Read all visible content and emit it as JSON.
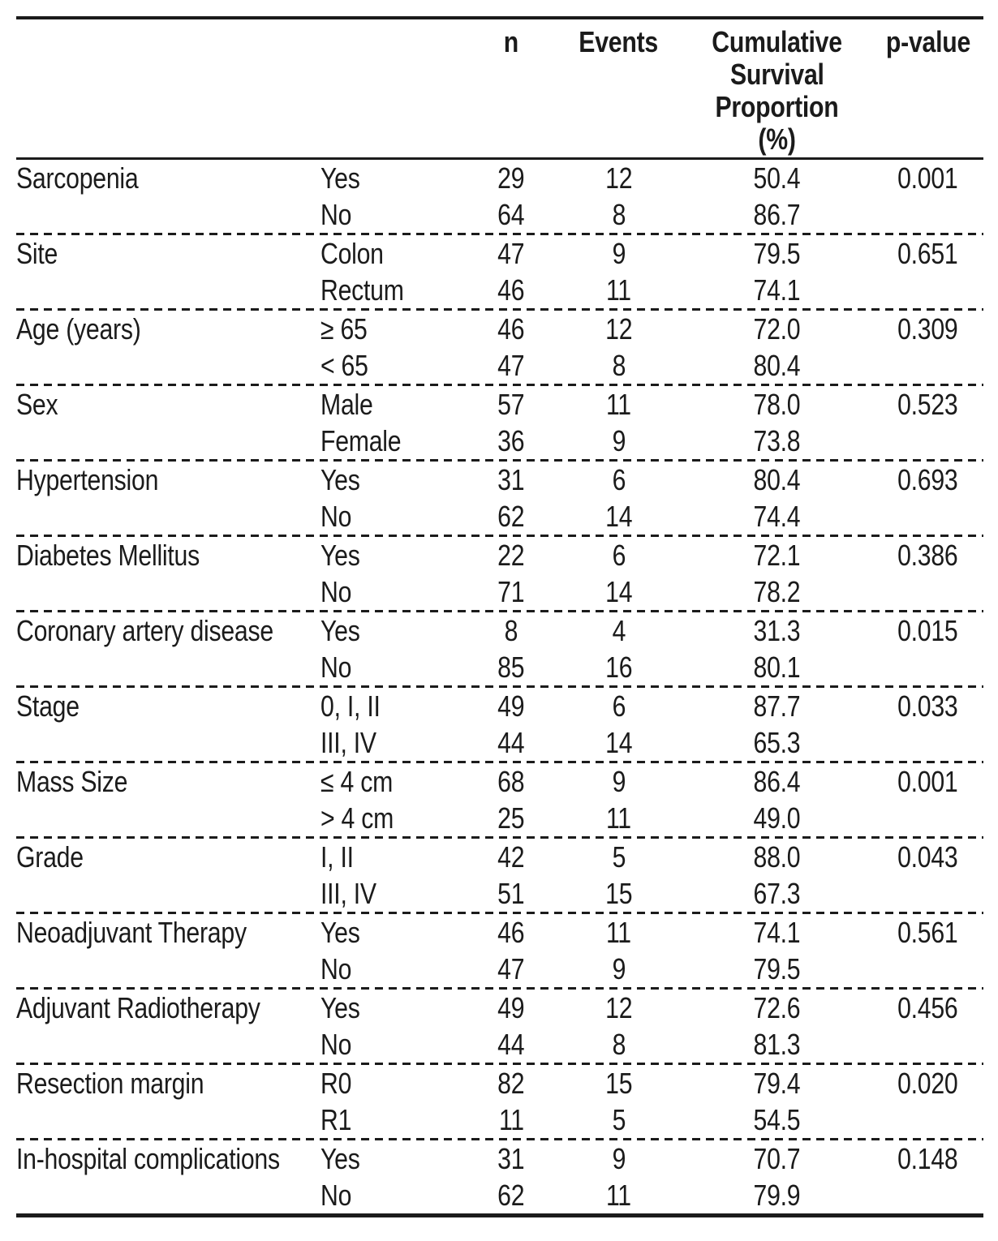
{
  "table": {
    "columns": {
      "n": "n",
      "events": "Events",
      "cumulative_lines": [
        "Cumulative",
        "Survival",
        "Proportion",
        "(%)"
      ],
      "p_value": "p-value"
    },
    "groups": [
      {
        "variable": "Sarcopenia",
        "p_value": "0.001",
        "rows": [
          {
            "category": "Yes",
            "n": "29",
            "events": "12",
            "survival": "50.4"
          },
          {
            "category": "No",
            "n": "64",
            "events": "8",
            "survival": "86.7"
          }
        ]
      },
      {
        "variable": "Site",
        "p_value": "0.651",
        "rows": [
          {
            "category": "Colon",
            "n": "47",
            "events": "9",
            "survival": "79.5"
          },
          {
            "category": "Rectum",
            "n": "46",
            "events": "11",
            "survival": "74.1"
          }
        ]
      },
      {
        "variable": "Age (years)",
        "p_value": "0.309",
        "rows": [
          {
            "category": "≥ 65",
            "n": "46",
            "events": "12",
            "survival": "72.0"
          },
          {
            "category": "< 65",
            "n": "47",
            "events": "8",
            "survival": "80.4"
          }
        ]
      },
      {
        "variable": "Sex",
        "p_value": "0.523",
        "rows": [
          {
            "category": "Male",
            "n": "57",
            "events": "11",
            "survival": "78.0"
          },
          {
            "category": "Female",
            "n": "36",
            "events": "9",
            "survival": "73.8"
          }
        ]
      },
      {
        "variable": "Hypertension",
        "p_value": "0.693",
        "rows": [
          {
            "category": "Yes",
            "n": "31",
            "events": "6",
            "survival": "80.4"
          },
          {
            "category": "No",
            "n": "62",
            "events": "14",
            "survival": "74.4"
          }
        ]
      },
      {
        "variable": "Diabetes Mellitus",
        "p_value": "0.386",
        "rows": [
          {
            "category": "Yes",
            "n": "22",
            "events": "6",
            "survival": "72.1"
          },
          {
            "category": "No",
            "n": "71",
            "events": "14",
            "survival": "78.2"
          }
        ]
      },
      {
        "variable": "Coronary artery disease",
        "p_value": "0.015",
        "rows": [
          {
            "category": "Yes",
            "n": "8",
            "events": "4",
            "survival": "31.3"
          },
          {
            "category": "No",
            "n": "85",
            "events": "16",
            "survival": "80.1"
          }
        ]
      },
      {
        "variable": "Stage",
        "p_value": "0.033",
        "rows": [
          {
            "category": "0, I, II",
            "n": "49",
            "events": "6",
            "survival": "87.7"
          },
          {
            "category": "III, IV",
            "n": "44",
            "events": "14",
            "survival": "65.3"
          }
        ]
      },
      {
        "variable": "Mass Size",
        "p_value": "0.001",
        "rows": [
          {
            "category": "≤ 4 cm",
            "n": "68",
            "events": "9",
            "survival": "86.4"
          },
          {
            "category": "> 4 cm",
            "n": "25",
            "events": "11",
            "survival": "49.0"
          }
        ]
      },
      {
        "variable": "Grade",
        "p_value": "0.043",
        "rows": [
          {
            "category": "I, II",
            "n": "42",
            "events": "5",
            "survival": "88.0"
          },
          {
            "category": "III, IV",
            "n": "51",
            "events": "15",
            "survival": "67.3"
          }
        ]
      },
      {
        "variable": "Neoadjuvant Therapy",
        "p_value": "0.561",
        "rows": [
          {
            "category": "Yes",
            "n": "46",
            "events": "11",
            "survival": "74.1"
          },
          {
            "category": "No",
            "n": "47",
            "events": "9",
            "survival": "79.5"
          }
        ]
      },
      {
        "variable": "Adjuvant Radiotherapy",
        "p_value": "0.456",
        "rows": [
          {
            "category": "Yes",
            "n": "49",
            "events": "12",
            "survival": "72.6"
          },
          {
            "category": "No",
            "n": "44",
            "events": "8",
            "survival": "81.3"
          }
        ]
      },
      {
        "variable": "Resection margin",
        "p_value": "0.020",
        "rows": [
          {
            "category": "R0",
            "n": "82",
            "events": "15",
            "survival": "79.4"
          },
          {
            "category": "R1",
            "n": "11",
            "events": "5",
            "survival": "54.5"
          }
        ]
      },
      {
        "variable": "In-hospital complications",
        "p_value": "0.148",
        "rows": [
          {
            "category": "Yes",
            "n": "31",
            "events": "9",
            "survival": "70.7"
          },
          {
            "category": "No",
            "n": "62",
            "events": "11",
            "survival": "79.9"
          }
        ]
      }
    ],
    "colors": {
      "text": "#1b1b1b",
      "rule": "#1b1b1b",
      "background": "#ffffff"
    }
  }
}
